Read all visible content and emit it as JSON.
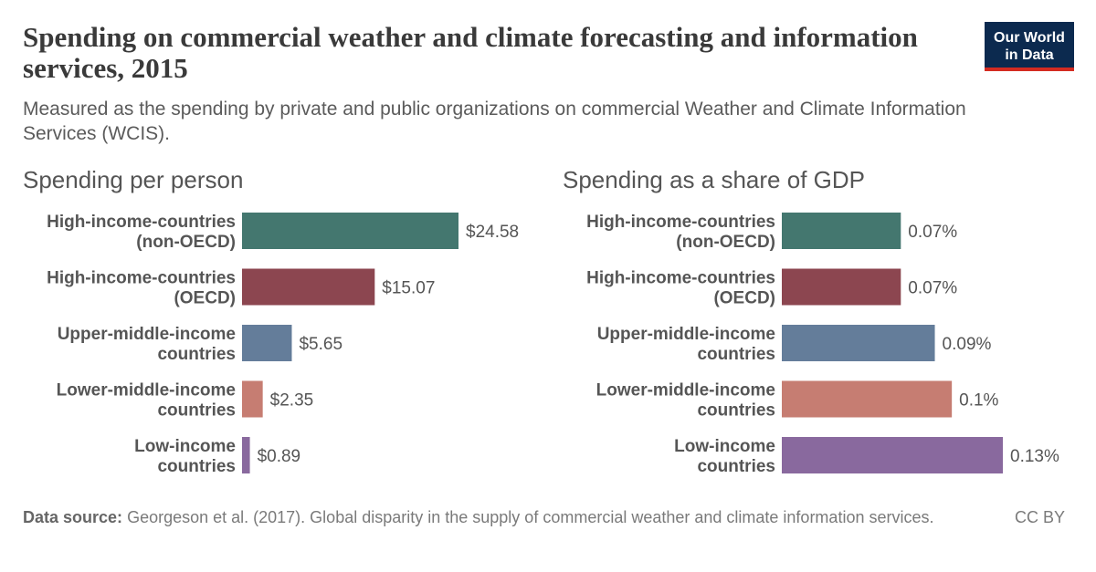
{
  "header": {
    "title": "Spending on commercial weather and climate forecasting and information services, 2015",
    "subtitle": "Measured as the spending by private and public organizations on commercial Weather and Climate Information Services (WCIS).",
    "logo_line1": "Our World",
    "logo_line2": "in Data"
  },
  "footer": {
    "source_label": "Data source:",
    "source_text": "Georgeson et al. (2017). Global disparity in the supply of commercial weather and climate information services.",
    "license": "CC BY"
  },
  "colors": {
    "series": [
      "#44776f",
      "#8c4650",
      "#647d9a",
      "#c67d72",
      "#89699e"
    ]
  },
  "chart_data": [
    {
      "type": "bar",
      "orientation": "horizontal",
      "title": "Spending per person",
      "categories": [
        [
          "High-income-countries",
          "(non-OECD)"
        ],
        [
          "High-income-countries",
          "(OECD)"
        ],
        [
          "Upper-middle-income",
          "countries"
        ],
        [
          "Lower-middle-income",
          "countries"
        ],
        [
          "Low-income",
          "countries"
        ]
      ],
      "values": [
        24.58,
        15.07,
        5.65,
        2.35,
        0.89
      ],
      "value_labels": [
        "$24.58",
        "$15.07",
        "$5.65",
        "$2.35",
        "$0.89"
      ],
      "xlim": [
        0,
        24.58
      ]
    },
    {
      "type": "bar",
      "orientation": "horizontal",
      "title": "Spending as a share of GDP",
      "categories": [
        [
          "High-income-countries",
          "(non-OECD)"
        ],
        [
          "High-income-countries",
          "(OECD)"
        ],
        [
          "Upper-middle-income",
          "countries"
        ],
        [
          "Lower-middle-income",
          "countries"
        ],
        [
          "Low-income",
          "countries"
        ]
      ],
      "values": [
        0.07,
        0.07,
        0.09,
        0.1,
        0.13
      ],
      "value_labels": [
        "0.07%",
        "0.07%",
        "0.09%",
        "0.1%",
        "0.13%"
      ],
      "xlim": [
        0,
        0.13
      ]
    }
  ]
}
